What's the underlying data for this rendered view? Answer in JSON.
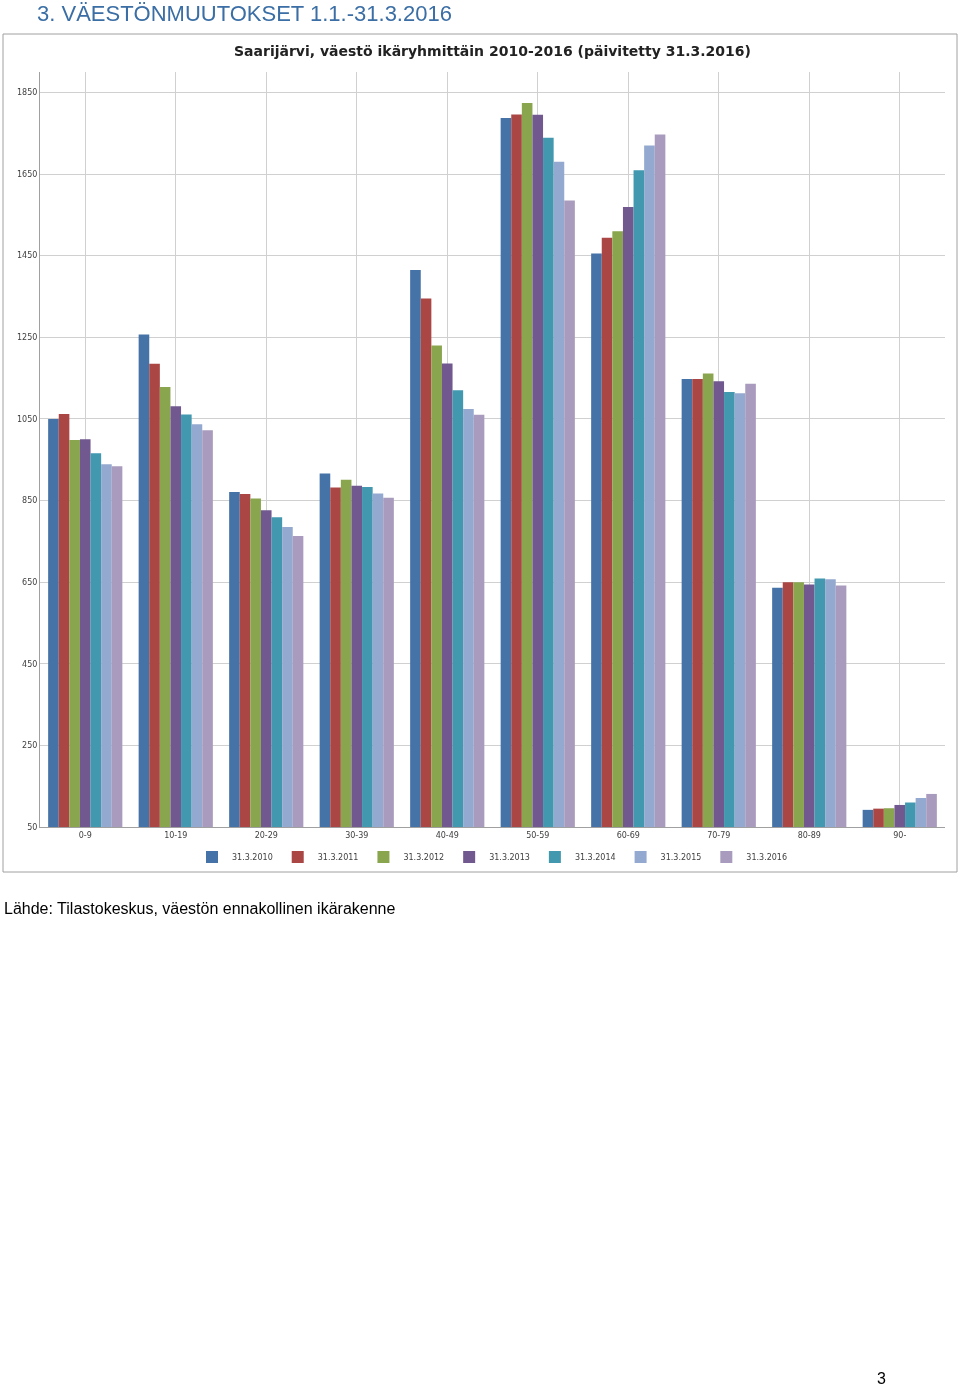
{
  "chart_data": {
    "type": "bar",
    "title": "3. VÄESTÖNMUUTOKSET 1.1.-31.3.2016",
    "subtitle": "Saarijärvi, väestö ikäryhmittäin 2010-2016 (päivitetty 31.3.2016)",
    "annotations": [
      "Lähde: Tilastokeskus, väestön ennakollinen ikärakenne",
      "3"
    ],
    "categories": [
      "0-9",
      "10-19",
      "20-29",
      "30-39",
      "40-49",
      "50-59",
      "60-69",
      "70-79",
      "80-89",
      "90-"
    ],
    "series": [
      {
        "name": "31.3.2010",
        "color": "#4572a7",
        "values": [
          1050,
          1257,
          871,
          916,
          1415,
          1787,
          1455,
          1148,
          636,
          92
        ]
      },
      {
        "name": "31.3.2011",
        "color": "#aa4643",
        "values": [
          1062,
          1185,
          866,
          882,
          1345,
          1796,
          1494,
          1148,
          650,
          95
        ]
      },
      {
        "name": "31.3.2012",
        "color": "#89a54e",
        "values": [
          998,
          1128,
          855,
          901,
          1230,
          1824,
          1510,
          1161,
          650,
          96
        ]
      },
      {
        "name": "31.3.2013",
        "color": "#71588f",
        "values": [
          1000,
          1081,
          826,
          886,
          1186,
          1795,
          1569,
          1142,
          644,
          104
        ]
      },
      {
        "name": "31.3.2014",
        "color": "#4198af",
        "values": [
          966,
          1061,
          809,
          883,
          1120,
          1739,
          1659,
          1116,
          659,
          110
        ]
      },
      {
        "name": "31.3.2015",
        "color": "#93a9cf",
        "values": [
          939,
          1037,
          785,
          867,
          1074,
          1680,
          1720,
          1113,
          657,
          121
        ]
      },
      {
        "name": "31.3.2016",
        "color": "#a99bbd",
        "values": [
          934,
          1022,
          763,
          857,
          1060,
          1585,
          1747,
          1136,
          642,
          131
        ]
      }
    ],
    "ylim": [
      50,
      1900
    ],
    "yticks": [
      50,
      250,
      450,
      650,
      850,
      1050,
      1250,
      1450,
      1650,
      1850
    ],
    "grid": true,
    "legend": "bottom"
  }
}
